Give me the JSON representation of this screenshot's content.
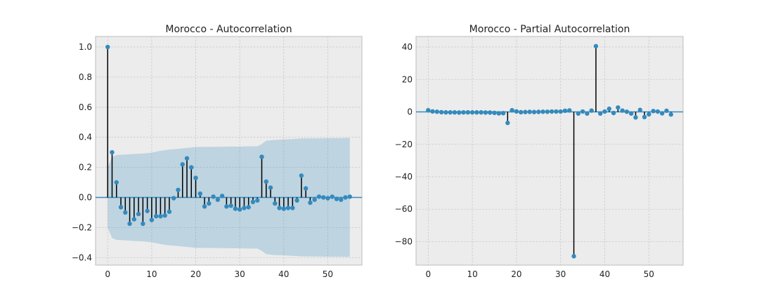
{
  "colors": {
    "figure_background": "#ffffff",
    "axes_background": "#ececec",
    "marker": "#348abd",
    "stem": "#000000",
    "zero_line": "#348abd",
    "confidence_band": "#348abd"
  },
  "chart_data": [
    {
      "type": "stem",
      "title": "Morocco - Autocorrelation",
      "xlabel": "",
      "ylabel": "",
      "xlim": [
        -2.75,
        57.75
      ],
      "ylim": [
        -0.45,
        1.07
      ],
      "xticks": [
        0,
        10,
        20,
        30,
        40,
        50
      ],
      "yticks": [
        -0.4,
        -0.2,
        0.0,
        0.2,
        0.4,
        0.6,
        0.8,
        1.0
      ],
      "ytick_labels": [
        "−0.4",
        "−0.2",
        "0.0",
        "0.2",
        "0.4",
        "0.6",
        "0.8",
        "1.0"
      ],
      "xtick_labels": [
        "0",
        "10",
        "20",
        "30",
        "40",
        "50"
      ],
      "grid": true,
      "x": [
        0,
        1,
        2,
        3,
        4,
        5,
        6,
        7,
        8,
        9,
        10,
        11,
        12,
        13,
        14,
        15,
        16,
        17,
        18,
        19,
        20,
        21,
        22,
        23,
        24,
        25,
        26,
        27,
        28,
        29,
        30,
        31,
        32,
        33,
        34,
        35,
        36,
        37,
        38,
        39,
        40,
        41,
        42,
        43,
        44,
        45,
        46,
        47,
        48,
        49,
        50,
        51,
        52,
        53,
        54,
        55
      ],
      "values": [
        1.0,
        0.3,
        0.1,
        -0.065,
        -0.1,
        -0.175,
        -0.145,
        -0.11,
        -0.175,
        -0.09,
        -0.15,
        -0.125,
        -0.125,
        -0.12,
        -0.095,
        -0.005,
        0.05,
        0.22,
        0.26,
        0.2,
        0.13,
        0.025,
        -0.06,
        -0.04,
        0.005,
        -0.015,
        0.01,
        -0.06,
        -0.055,
        -0.075,
        -0.08,
        -0.07,
        -0.065,
        -0.03,
        -0.02,
        0.27,
        0.105,
        0.065,
        -0.04,
        -0.07,
        -0.075,
        -0.07,
        -0.07,
        -0.02,
        0.145,
        0.06,
        -0.035,
        -0.015,
        0.005,
        0.0,
        -0.005,
        0.005,
        -0.01,
        -0.015,
        0.0,
        0.005
      ],
      "confidence_band": {
        "x": [
          0,
          1,
          2,
          4,
          6,
          8,
          10,
          12,
          14,
          16,
          18,
          20,
          22,
          24,
          26,
          28,
          30,
          32,
          34,
          35,
          36,
          38,
          40,
          42,
          44,
          46,
          48,
          50,
          52,
          55
        ],
        "upper": [
          0.2,
          0.27,
          0.282,
          0.285,
          0.289,
          0.292,
          0.298,
          0.31,
          0.318,
          0.323,
          0.329,
          0.335,
          0.336,
          0.336,
          0.337,
          0.338,
          0.338,
          0.34,
          0.34,
          0.355,
          0.377,
          0.383,
          0.385,
          0.388,
          0.392,
          0.393,
          0.393,
          0.394,
          0.394,
          0.395
        ]
      }
    },
    {
      "type": "stem",
      "title": "Morocco - Partial Autocorrelation",
      "xlabel": "",
      "ylabel": "",
      "xlim": [
        -2.75,
        57.75
      ],
      "ylim": [
        -94.5,
        46.5
      ],
      "xticks": [
        0,
        10,
        20,
        30,
        40,
        50
      ],
      "yticks": [
        -80,
        -60,
        -40,
        -20,
        0,
        20,
        40
      ],
      "ytick_labels": [
        "−80",
        "−60",
        "−40",
        "−20",
        "0",
        "20",
        "40"
      ],
      "xtick_labels": [
        "0",
        "10",
        "20",
        "30",
        "40",
        "50"
      ],
      "grid": true,
      "x": [
        0,
        1,
        2,
        3,
        4,
        5,
        6,
        7,
        8,
        9,
        10,
        11,
        12,
        13,
        14,
        15,
        16,
        17,
        18,
        19,
        20,
        21,
        22,
        23,
        24,
        25,
        26,
        27,
        28,
        29,
        30,
        31,
        32,
        33,
        34,
        35,
        36,
        37,
        38,
        39,
        40,
        41,
        42,
        43,
        44,
        45,
        46,
        47,
        48,
        49,
        50,
        51,
        52,
        53,
        54,
        55
      ],
      "values": [
        1.0,
        0.3,
        0.1,
        -0.2,
        -0.3,
        -0.3,
        -0.3,
        -0.4,
        -0.3,
        -0.3,
        -0.3,
        -0.3,
        -0.3,
        -0.4,
        -0.4,
        -0.6,
        -0.9,
        -0.8,
        -6.8,
        1.0,
        0.3,
        -0.2,
        -0.1,
        0.0,
        -0.1,
        0.0,
        0.1,
        0.1,
        0.2,
        0.2,
        0.2,
        0.7,
        0.9,
        -89.0,
        -1.0,
        0.2,
        -1.0,
        0.8,
        40.5,
        -1.0,
        0.2,
        1.9,
        -0.7,
        2.7,
        0.8,
        0.1,
        -1.0,
        -3.4,
        1.2,
        -3.2,
        -1.5,
        0.5,
        0.2,
        -0.9,
        0.7,
        -1.6
      ]
    }
  ]
}
